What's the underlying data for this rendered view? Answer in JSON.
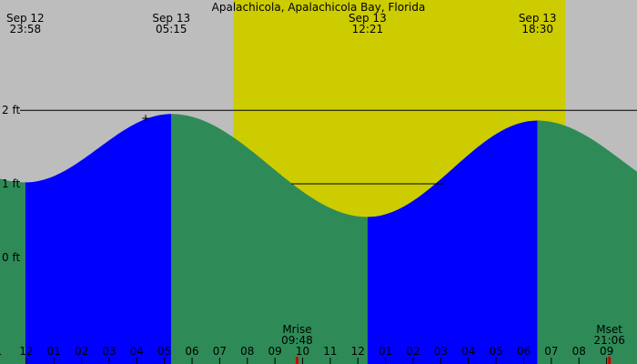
{
  "chart_data": {
    "type": "area",
    "title": "Apalachicola, Apalachicola Bay, Florida",
    "xlabel": "",
    "ylabel": "",
    "units": "ft",
    "yticks": [
      {
        "value": 2,
        "label": "2 ft"
      },
      {
        "value": 1,
        "label": "1 ft"
      },
      {
        "value": 0,
        "label": "0 ft"
      }
    ],
    "tide_extremes": [
      {
        "date": "Sep 12",
        "time": "23:58",
        "type": "low",
        "height_ft": 1.02
      },
      {
        "date": "Sep 13",
        "time": "05:15",
        "type": "high",
        "height_ft": 1.95
      },
      {
        "date": "Sep 13",
        "time": "12:21",
        "type": "low",
        "height_ft": 0.55
      },
      {
        "date": "Sep 13",
        "time": "18:30",
        "type": "high",
        "height_ft": 1.86
      }
    ],
    "daylight": {
      "start_hour": 7.5,
      "end_hour": 19.5,
      "color": "#cccc00"
    },
    "hour_axis": [
      "1",
      "12",
      "01",
      "02",
      "03",
      "04",
      "05",
      "06",
      "07",
      "08",
      "09",
      "10",
      "11",
      "12",
      "01",
      "02",
      "03",
      "04",
      "05",
      "06",
      "07",
      "08",
      "09"
    ],
    "hour_axis_first_x_hour": -1,
    "events": [
      {
        "name": "Mrise",
        "time": "09:48",
        "hour": 9.8
      },
      {
        "name": "Mset",
        "time": "21:06",
        "hour": 21.1
      }
    ],
    "colors": {
      "background": "#bdbdbd",
      "rising": "#0000ff",
      "falling": "#2e8b57",
      "daylight": "#cccc00",
      "line": "#000000",
      "event_tick": "#cc0000"
    },
    "x_range_hours": [
      -0.95,
      22.1
    ],
    "y_range_ft": [
      -1.45,
      3.5
    ]
  }
}
